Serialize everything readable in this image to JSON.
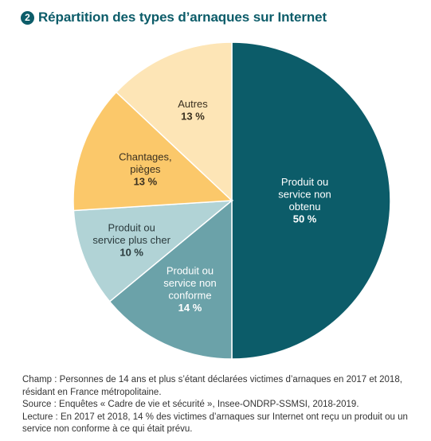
{
  "header": {
    "badge": "2",
    "title": "Répartition des types d’arnaques sur Internet"
  },
  "chart_data": {
    "type": "pie",
    "title": "Répartition des types d’arnaques sur Internet",
    "unit": "%",
    "slices": [
      {
        "label": [
          "Produit ou",
          "service non",
          "obtenu"
        ],
        "value": 50,
        "pct_label": "50 %",
        "color": "#0c5c69",
        "text_color": "#ffffff"
      },
      {
        "label": [
          "Produit ou",
          "service non",
          "conforme"
        ],
        "value": 14,
        "pct_label": "14 %",
        "color": "#6ba2a9",
        "text_color": "#ffffff"
      },
      {
        "label": [
          "Produit ou",
          "service plus cher"
        ],
        "value": 10,
        "pct_label": "10 %",
        "color": "#b1d3d6",
        "text_color": "#2a3a3c"
      },
      {
        "label": [
          "Chantages,",
          "pièges"
        ],
        "value": 13,
        "pct_label": "13 %",
        "color": "#fbc86a",
        "text_color": "#3a3020"
      },
      {
        "label": [
          "Autres"
        ],
        "value": 13,
        "pct_label": "13 %",
        "color": "#fde5b6",
        "text_color": "#3a3020"
      }
    ]
  },
  "notes": {
    "champ": "Champ : Personnes de 14 ans et plus s’étant déclarées victimes d’arnaques en 2017 et 2018, résidant en France métropolitaine.",
    "source": "Source : Enquêtes « Cadre de vie et sécurité », Insee-ONDRP-SSMSI, 2018-2019.",
    "lecture": "Lecture : En 2017 et 2018, 14 % des victimes d’arnaques sur Internet ont reçu un produit ou un service non conforme à ce qui était prévu."
  }
}
